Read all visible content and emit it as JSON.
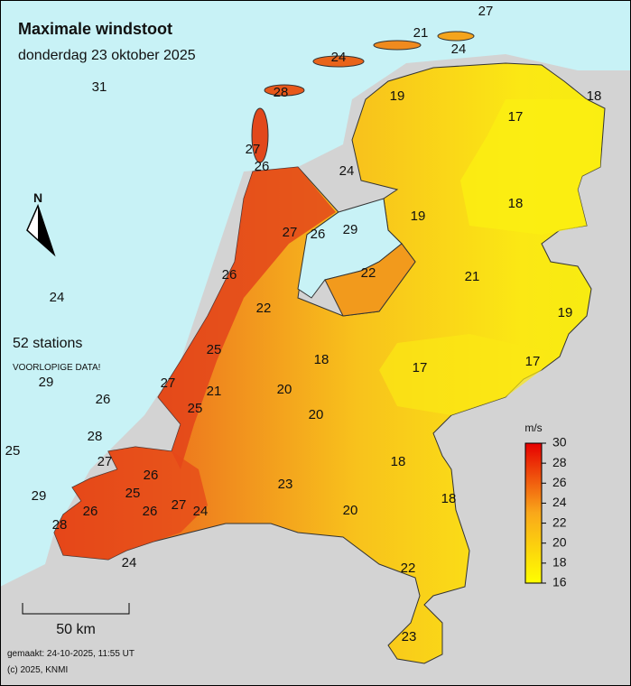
{
  "title": "Maximale windstoot",
  "subtitle": "donderdag 23 oktober 2025",
  "stations_count": "52 stations",
  "note": "VOORLOPIGE DATA!",
  "north": "N",
  "stations": [
    27,
    21,
    24,
    24,
    31,
    28,
    19,
    18,
    17,
    27,
    26,
    24,
    19,
    18,
    29,
    27,
    26,
    26,
    22,
    21,
    24,
    22,
    19,
    25,
    18,
    17,
    17,
    29,
    27,
    21,
    20,
    26,
    25,
    20,
    28,
    25,
    18,
    27,
    26,
    23,
    25,
    29,
    18,
    27,
    24,
    26,
    26,
    20,
    28,
    24,
    22,
    23
  ],
  "legend": {
    "unit": "m/s",
    "ticks": [
      16,
      18,
      20,
      22,
      24,
      26,
      28,
      30
    ]
  },
  "scale_bar": "50 km",
  "footer": [
    "gemaakt: 24-10-2025, 11:55 UT",
    "(c) 2025, KNMI"
  ]
}
